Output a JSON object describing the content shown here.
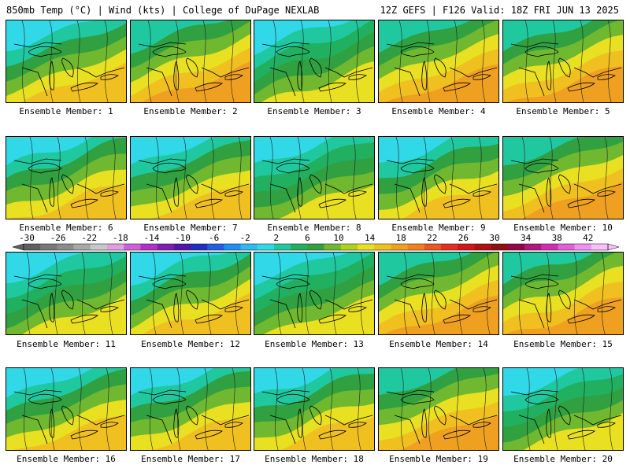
{
  "header": {
    "title_left": "850mb Temp (°C) | Wind (kts) | College of DuPage NEXLAB",
    "title_right": "12Z GEFS | F126 Valid: 18Z FRI JUN 13 2025"
  },
  "colorbar": {
    "labels": [
      "-30",
      "-26",
      "-22",
      "-18",
      "-14",
      "-10",
      "-6",
      "-2",
      "2",
      "6",
      "10",
      "14",
      "18",
      "22",
      "26",
      "30",
      "34",
      "38",
      "42"
    ],
    "colors": [
      "#606060",
      "#787878",
      "#8c8c8c",
      "#a8a8a8",
      "#c8c8c8",
      "#e0a0e0",
      "#d060d8",
      "#b030c8",
      "#8020b0",
      "#5018a8",
      "#2030c0",
      "#2060e0",
      "#2090f0",
      "#30b8f0",
      "#30d8e8",
      "#20c8a0",
      "#20b060",
      "#30a040",
      "#70b830",
      "#b0d020",
      "#e8e020",
      "#f0c020",
      "#f0a020",
      "#f08020",
      "#e85820",
      "#e03020",
      "#d01818",
      "#b01010",
      "#901010",
      "#900848",
      "#b01880",
      "#d030b0",
      "#e060d8",
      "#f090f0",
      "#f8c0f8"
    ]
  },
  "panels": [
    {
      "label": "Ensemble Member: 1",
      "palette": "warm"
    },
    {
      "label": "Ensemble Member: 2",
      "palette": "hot"
    },
    {
      "label": "Ensemble Member: 3",
      "palette": "cool"
    },
    {
      "label": "Ensemble Member: 4",
      "palette": "hot"
    },
    {
      "label": "Ensemble Member: 5",
      "palette": "hot"
    },
    {
      "label": "Ensemble Member: 6",
      "palette": "warm"
    },
    {
      "label": "Ensemble Member: 7",
      "palette": "warm"
    },
    {
      "label": "Ensemble Member: 8",
      "palette": "cool"
    },
    {
      "label": "Ensemble Member: 9",
      "palette": "warm"
    },
    {
      "label": "Ensemble Member: 10",
      "palette": "hot"
    },
    {
      "label": "Ensemble Member: 11",
      "palette": "cool"
    },
    {
      "label": "Ensemble Member: 12",
      "palette": "warm"
    },
    {
      "label": "Ensemble Member: 13",
      "palette": "cool"
    },
    {
      "label": "Ensemble Member: 14",
      "palette": "hot"
    },
    {
      "label": "Ensemble Member: 15",
      "palette": "hot"
    },
    {
      "label": "Ensemble Member: 16",
      "palette": "warm"
    },
    {
      "label": "Ensemble Member: 17",
      "palette": "warm"
    },
    {
      "label": "Ensemble Member: 18",
      "palette": "warm"
    },
    {
      "label": "Ensemble Member: 19",
      "palette": "hot"
    },
    {
      "label": "Ensemble Member: 20",
      "palette": "cool"
    }
  ],
  "palettes": {
    "cool": [
      "#30d8e8",
      "#20c8a0",
      "#20b060",
      "#30a040",
      "#70b830",
      "#e8e020"
    ],
    "warm": [
      "#30d8e8",
      "#20c8a0",
      "#30a040",
      "#70b830",
      "#e8e020",
      "#f0c020"
    ],
    "hot": [
      "#20c8a0",
      "#30a040",
      "#70b830",
      "#e8e020",
      "#f0c020",
      "#f0a020"
    ]
  }
}
